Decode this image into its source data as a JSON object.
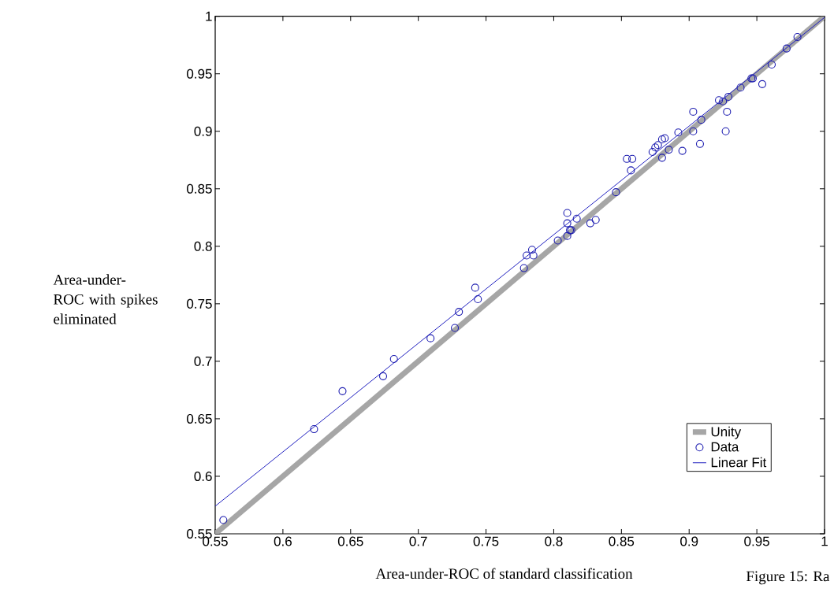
{
  "chart_data": {
    "type": "scatter",
    "xlabel": "Area-under-ROC of standard classification",
    "ylabel": "Area-under-ROC with spikes eliminated",
    "annotations": [
      "Figure 15: Ra"
    ],
    "xlim": [
      0.55,
      1
    ],
    "ylim": [
      0.55,
      1
    ],
    "xticks": [
      0.55,
      0.6,
      0.65,
      0.7,
      0.75,
      0.8,
      0.85,
      0.9,
      0.95,
      1
    ],
    "yticks": [
      0.55,
      0.6,
      0.65,
      0.7,
      0.75,
      0.8,
      0.85,
      0.9,
      0.95,
      1
    ],
    "grid": false,
    "legend": "bottom right",
    "series": [
      {
        "name": "Unity",
        "type": "line",
        "marker": "none",
        "color": "#a6a6a6",
        "x": [
          0.55,
          1
        ],
        "values": [
          0.55,
          1
        ]
      },
      {
        "name": "Data",
        "marker": "circle",
        "color": "#1c1cb0",
        "x": [
          0.556,
          0.623,
          0.644,
          0.674,
          0.682,
          0.709,
          0.727,
          0.73,
          0.742,
          0.744,
          0.778,
          0.78,
          0.784,
          0.785,
          0.803,
          0.81,
          0.81,
          0.81,
          0.812,
          0.813,
          0.817,
          0.827,
          0.831,
          0.846,
          0.854,
          0.858,
          0.857,
          0.873,
          0.875,
          0.877,
          0.88,
          0.88,
          0.882,
          0.885,
          0.892,
          0.895,
          0.903,
          0.903,
          0.908,
          0.909,
          0.922,
          0.925,
          0.928,
          0.927,
          0.929,
          0.938,
          0.946,
          0.947,
          0.954,
          0.961,
          0.972,
          0.98
        ],
        "values": [
          0.562,
          0.641,
          0.674,
          0.687,
          0.702,
          0.72,
          0.729,
          0.743,
          0.764,
          0.754,
          0.781,
          0.792,
          0.797,
          0.792,
          0.805,
          0.809,
          0.829,
          0.82,
          0.814,
          0.814,
          0.824,
          0.82,
          0.823,
          0.847,
          0.876,
          0.876,
          0.866,
          0.882,
          0.886,
          0.888,
          0.877,
          0.893,
          0.894,
          0.884,
          0.899,
          0.883,
          0.9,
          0.917,
          0.889,
          0.91,
          0.927,
          0.926,
          0.917,
          0.9,
          0.93,
          0.938,
          0.946,
          0.946,
          0.941,
          0.958,
          0.972,
          0.982
        ]
      },
      {
        "name": "Linear Fit",
        "type": "line",
        "marker": "none",
        "color": "#2020c0",
        "x": [
          0.55,
          1
        ],
        "values": [
          0.574,
          0.999
        ]
      }
    ]
  }
}
